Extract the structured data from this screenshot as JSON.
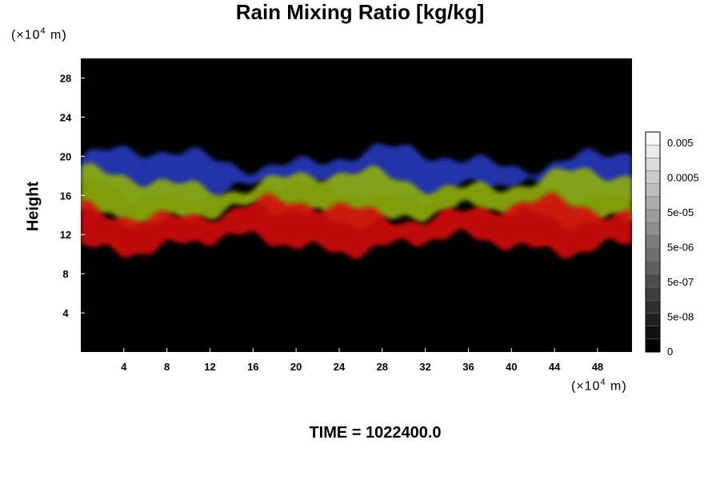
{
  "chart_data": {
    "type": "heatmap",
    "title": "Rain Mixing Ratio [kg/kg]",
    "ylabel": "Height",
    "x_unit": {
      "prefix": "(×10",
      "exp": "4",
      "suffix": " m)"
    },
    "y_unit": {
      "prefix": "(×10",
      "exp": "4",
      "suffix": " m)"
    },
    "xlim": [
      0,
      51.2
    ],
    "ylim": [
      0,
      30
    ],
    "x_ticks": [
      4,
      8,
      12,
      16,
      20,
      24,
      28,
      32,
      36,
      40,
      44,
      48
    ],
    "y_ticks": [
      4,
      8,
      12,
      16,
      20,
      24,
      28
    ],
    "layers": [
      {
        "color": "#2a3cc8",
        "bottom": 16.5,
        "top": 19.8,
        "label": "blue band"
      },
      {
        "color": "#8fae10",
        "bottom": 14.0,
        "top": 17.5,
        "label": "green band"
      },
      {
        "color": "#d41010",
        "bottom": 11.0,
        "top": 14.5,
        "label": "red band"
      }
    ],
    "colorbar": {
      "labels": [
        "0.005",
        "0.0005",
        "5e-05",
        "5e-06",
        "5e-07",
        "5e-08",
        "0"
      ],
      "levels": 17
    },
    "background": "#000000"
  },
  "footer": {
    "time_label": "TIME = 1022400.0"
  }
}
